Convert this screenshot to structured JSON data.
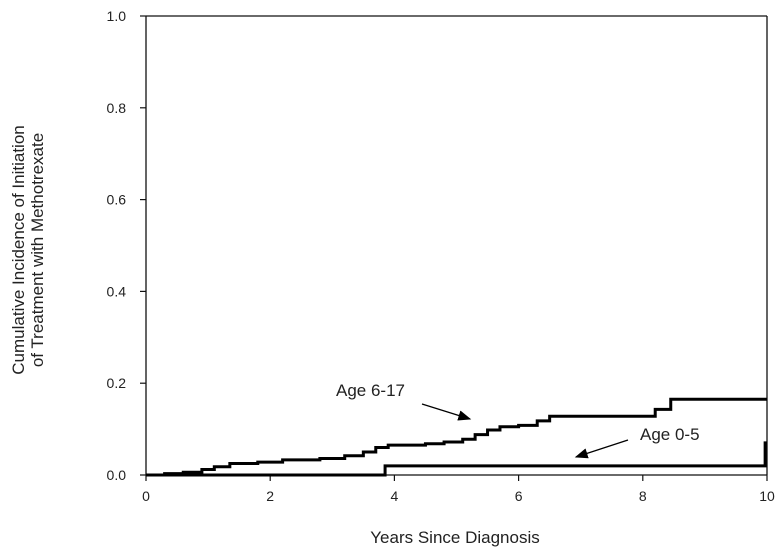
{
  "chart_data": {
    "type": "line",
    "xlabel": "Years Since Diagnosis",
    "ylabel_lines": [
      "Cumulative Incidence of Initiation",
      "of Treatment with Methotrexate"
    ],
    "xlim": [
      0,
      10
    ],
    "ylim": [
      0,
      1.0
    ],
    "x_ticks": [
      0,
      2,
      4,
      6,
      8,
      10
    ],
    "y_ticks": [
      0.0,
      0.2,
      0.4,
      0.6,
      0.8,
      1.0
    ],
    "x_tick_labels": [
      "0",
      "2",
      "4",
      "6",
      "8",
      "10"
    ],
    "y_tick_labels": [
      "0.0",
      "0.2",
      "0.4",
      "0.6",
      "0.8",
      "1.0"
    ],
    "grid": false,
    "series": [
      {
        "name": "Age 6-17",
        "step": true,
        "points": [
          [
            0,
            0
          ],
          [
            0.3,
            0.003
          ],
          [
            0.6,
            0.006
          ],
          [
            0.9,
            0.012
          ],
          [
            1.1,
            0.018
          ],
          [
            1.35,
            0.025
          ],
          [
            1.8,
            0.028
          ],
          [
            2.2,
            0.033
          ],
          [
            2.8,
            0.036
          ],
          [
            3.2,
            0.042
          ],
          [
            3.5,
            0.05
          ],
          [
            3.7,
            0.06
          ],
          [
            3.9,
            0.065
          ],
          [
            4.5,
            0.068
          ],
          [
            4.8,
            0.072
          ],
          [
            5.1,
            0.078
          ],
          [
            5.3,
            0.088
          ],
          [
            5.5,
            0.098
          ],
          [
            5.7,
            0.105
          ],
          [
            6.0,
            0.108
          ],
          [
            6.3,
            0.118
          ],
          [
            6.5,
            0.128
          ],
          [
            8.2,
            0.143
          ],
          [
            8.45,
            0.165
          ],
          [
            10,
            0.165
          ]
        ]
      },
      {
        "name": "Age 0-5",
        "step": true,
        "points": [
          [
            0,
            0
          ],
          [
            3.85,
            0.02
          ],
          [
            9.95,
            0.02
          ],
          [
            9.97,
            0.07
          ],
          [
            10,
            0.07
          ]
        ]
      }
    ],
    "annotations": [
      {
        "text": "Age 6-17",
        "x": 6.0,
        "y": 0.165
      },
      {
        "text": "Age 0-5",
        "x": 4.2,
        "y": 0.06
      }
    ]
  }
}
